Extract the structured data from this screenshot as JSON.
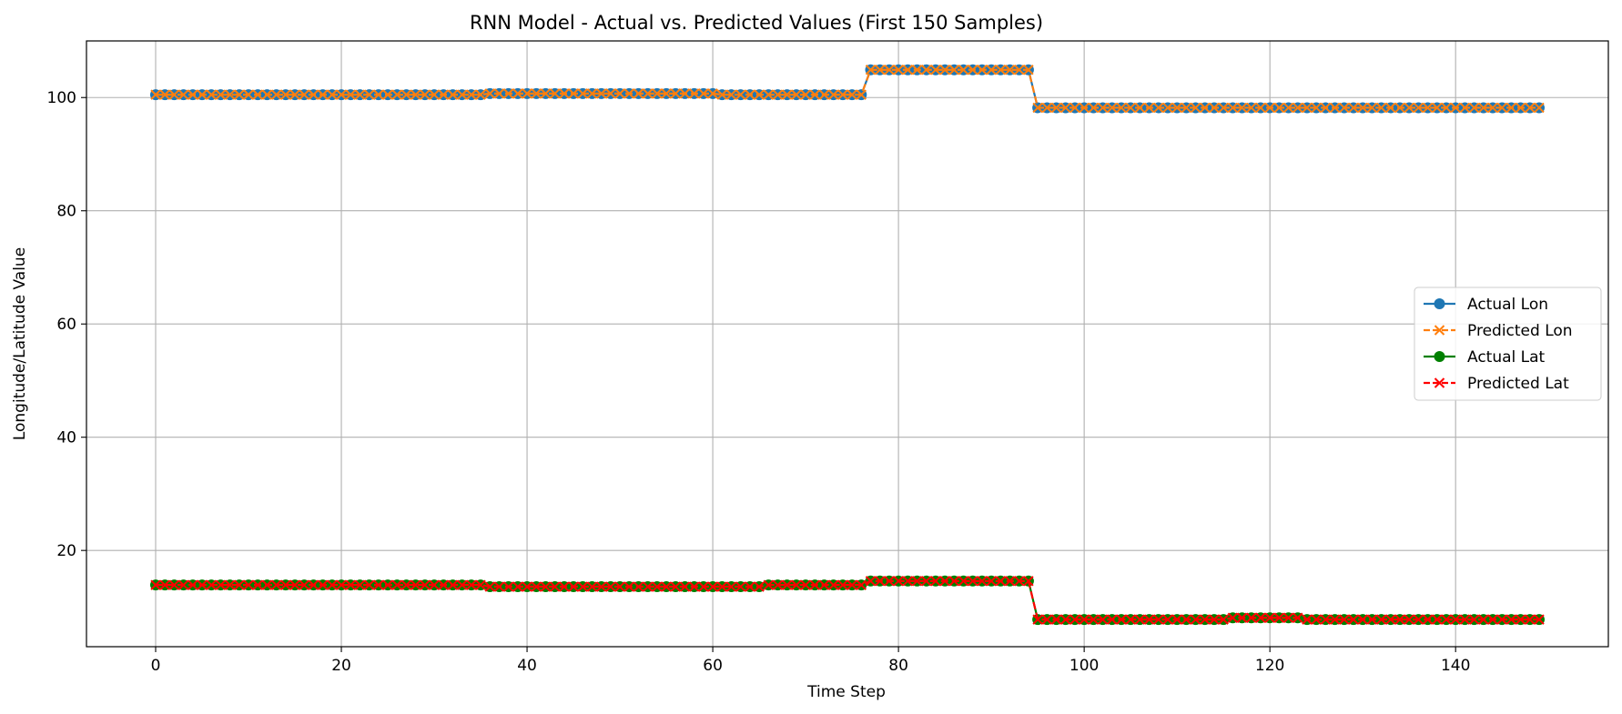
{
  "chart_data": {
    "type": "line",
    "title": "RNN Model - Actual vs. Predicted Values (First 150 Samples)",
    "xlabel": "Time Step",
    "ylabel": "Longitude/Latitude Value",
    "xlim": [
      -7.45,
      156.45
    ],
    "ylim": [
      3.0,
      110.0
    ],
    "xticks": [
      0,
      20,
      40,
      60,
      80,
      100,
      120,
      140
    ],
    "yticks": [
      20,
      40,
      60,
      80,
      100
    ],
    "grid": true,
    "legend_position": "center-right",
    "segments": {
      "lon": [
        {
          "from": 0,
          "to": 35,
          "value": 100.5
        },
        {
          "from": 36,
          "to": 60,
          "value": 100.7
        },
        {
          "from": 61,
          "to": 76,
          "value": 100.5
        },
        {
          "from": 77,
          "to": 94,
          "value": 104.9
        },
        {
          "from": 95,
          "to": 149,
          "value": 98.2
        }
      ],
      "lat": [
        {
          "from": 0,
          "to": 35,
          "value": 13.9
        },
        {
          "from": 36,
          "to": 65,
          "value": 13.6
        },
        {
          "from": 66,
          "to": 76,
          "value": 13.9
        },
        {
          "from": 77,
          "to": 94,
          "value": 14.6
        },
        {
          "from": 95,
          "to": 115,
          "value": 7.8
        },
        {
          "from": 116,
          "to": 123,
          "value": 8.1
        },
        {
          "from": 124,
          "to": 149,
          "value": 7.8
        }
      ]
    },
    "series": [
      {
        "name": "Actual Lon",
        "color": "#1f77b4",
        "marker": "circle",
        "linestyle": "solid",
        "source": "lon"
      },
      {
        "name": "Predicted Lon",
        "color": "#ff7f0e",
        "marker": "x",
        "linestyle": "dashed",
        "source": "lon"
      },
      {
        "name": "Actual Lat",
        "color": "#008000",
        "marker": "circle",
        "linestyle": "solid",
        "source": "lat"
      },
      {
        "name": "Predicted Lat",
        "color": "#ff0000",
        "marker": "x",
        "linestyle": "dashed",
        "source": "lat"
      }
    ]
  }
}
